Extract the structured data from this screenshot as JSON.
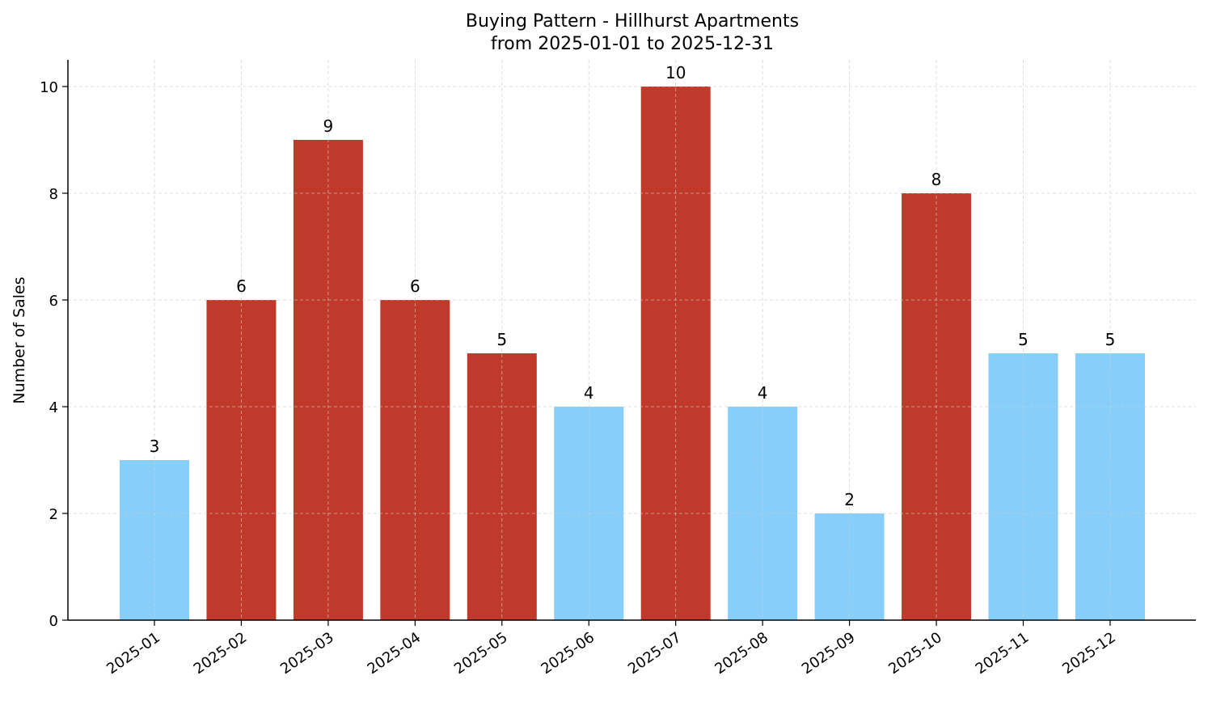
{
  "chart_data": {
    "type": "bar",
    "title": "Buying Pattern - Hillhurst Apartments",
    "subtitle": "from 2025-01-01 to 2025-12-31",
    "xlabel": "",
    "ylabel": "Number of Sales",
    "categories": [
      "2025-01",
      "2025-02",
      "2025-03",
      "2025-04",
      "2025-05",
      "2025-06",
      "2025-07",
      "2025-08",
      "2025-09",
      "2025-10",
      "2025-11",
      "2025-12"
    ],
    "values": [
      3,
      6,
      9,
      6,
      5,
      4,
      10,
      4,
      2,
      8,
      5,
      5
    ],
    "bar_colors": [
      "#87cefa",
      "#c0392b",
      "#c0392b",
      "#c0392b",
      "#c0392b",
      "#87cefa",
      "#c0392b",
      "#87cefa",
      "#87cefa",
      "#c0392b",
      "#87cefa",
      "#87cefa"
    ],
    "data_labels": [
      "3",
      "6",
      "9",
      "6",
      "5",
      "4",
      "10",
      "4",
      "2",
      "8",
      "5",
      "5"
    ],
    "yticks": [
      0,
      2,
      4,
      6,
      8,
      10
    ],
    "ylim": [
      0,
      10.5
    ],
    "grid": true,
    "legend": "none"
  }
}
